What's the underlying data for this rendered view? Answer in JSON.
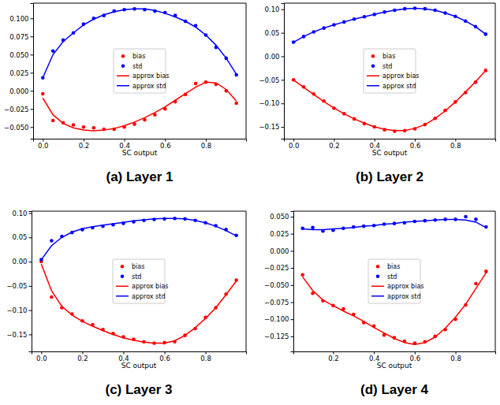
{
  "chart_data": [
    {
      "type": "scatter",
      "title": "(a) Layer 1",
      "x_label": "SC output",
      "legend": "center",
      "grid": false,
      "x": [
        0,
        0.05,
        0.1,
        0.15,
        0.2,
        0.25,
        0.3,
        0.35,
        0.4,
        0.45,
        0.5,
        0.55,
        0.6,
        0.65,
        0.7,
        0.75,
        0.8,
        0.85,
        0.9,
        0.95
      ],
      "xlim": [
        -0.0475,
        0.9975
      ],
      "xticks": [
        {
          "value": 0,
          "label": "0.0"
        },
        {
          "value": 0.2,
          "label": "0.2"
        },
        {
          "value": 0.4,
          "label": "0.4"
        },
        {
          "value": 0.6,
          "label": "0.6"
        },
        {
          "value": 0.8,
          "label": "0.8"
        }
      ],
      "ylim": [
        -0.066,
        0.121
      ],
      "yticks": [
        {
          "value": -0.05,
          "label": "−0.050"
        },
        {
          "value": -0.025,
          "label": "−0.025"
        },
        {
          "value": 0,
          "label": "0.000"
        },
        {
          "value": 0.025,
          "label": "0.025"
        },
        {
          "value": 0.05,
          "label": "0.050"
        },
        {
          "value": 0.075,
          "label": "0.075"
        },
        {
          "value": 0.1,
          "label": "0.100"
        }
      ],
      "series": [
        {
          "name": "bias",
          "color": "red",
          "type": "scatter",
          "marker": "circle",
          "values": [
            -0.004,
            -0.041,
            -0.044,
            -0.047,
            -0.05,
            -0.051,
            -0.053,
            -0.053,
            -0.05,
            -0.046,
            -0.04,
            -0.033,
            -0.025,
            -0.015,
            -0.005,
            0.01,
            0.012,
            0.009,
            0.0,
            -0.017
          ]
        },
        {
          "name": "std",
          "color": "blue",
          "type": "scatter",
          "marker": "circle",
          "values": [
            0.018,
            0.055,
            0.07,
            0.08,
            0.092,
            0.1,
            0.104,
            0.11,
            0.112,
            0.113,
            0.112,
            0.11,
            0.108,
            0.104,
            0.096,
            0.09,
            0.077,
            0.06,
            0.045,
            0.022
          ]
        },
        {
          "name": "approx bias",
          "color": "red",
          "type": "line",
          "line_style": "solid",
          "values": [
            -0.01,
            -0.033,
            -0.045,
            -0.051,
            -0.054,
            -0.055,
            -0.054,
            -0.052,
            -0.048,
            -0.043,
            -0.037,
            -0.03,
            -0.022,
            -0.013,
            -0.004,
            0.005,
            0.012,
            0.011,
            0.002,
            -0.014
          ]
        },
        {
          "name": "approx std",
          "color": "blue",
          "type": "line",
          "line_style": "solid",
          "values": [
            0.018,
            0.05,
            0.068,
            0.08,
            0.091,
            0.099,
            0.105,
            0.109,
            0.112,
            0.113,
            0.113,
            0.111,
            0.107,
            0.102,
            0.096,
            0.088,
            0.077,
            0.063,
            0.045,
            0.023
          ]
        }
      ]
    },
    {
      "type": "scatter",
      "title": "(b) Layer 2",
      "x_label": "SC output",
      "legend": "center",
      "grid": false,
      "x": [
        0,
        0.05,
        0.1,
        0.15,
        0.2,
        0.25,
        0.3,
        0.35,
        0.4,
        0.45,
        0.5,
        0.55,
        0.6,
        0.65,
        0.7,
        0.75,
        0.8,
        0.85,
        0.9,
        0.95
      ],
      "xlim": [
        -0.0475,
        0.9975
      ],
      "xticks": [
        {
          "value": 0,
          "label": "0.0"
        },
        {
          "value": 0.2,
          "label": "0.2"
        },
        {
          "value": 0.4,
          "label": "0.4"
        },
        {
          "value": 0.6,
          "label": "0.6"
        },
        {
          "value": 0.8,
          "label": "0.8"
        }
      ],
      "ylim": [
        -0.175,
        0.113
      ],
      "yticks": [
        {
          "value": -0.15,
          "label": "−0.15"
        },
        {
          "value": -0.1,
          "label": "−0.10"
        },
        {
          "value": -0.05,
          "label": "−0.05"
        },
        {
          "value": 0,
          "label": "0.00"
        },
        {
          "value": 0.05,
          "label": "0.05"
        },
        {
          "value": 0.1,
          "label": "0.10"
        }
      ],
      "series": [
        {
          "name": "bias",
          "color": "red",
          "type": "scatter",
          "marker": "circle",
          "values": [
            -0.05,
            -0.065,
            -0.08,
            -0.095,
            -0.11,
            -0.122,
            -0.133,
            -0.143,
            -0.15,
            -0.156,
            -0.159,
            -0.158,
            -0.154,
            -0.145,
            -0.132,
            -0.115,
            -0.097,
            -0.077,
            -0.055,
            -0.03
          ]
        },
        {
          "name": "std",
          "color": "blue",
          "type": "scatter",
          "marker": "circle",
          "values": [
            0.03,
            0.042,
            0.052,
            0.06,
            0.067,
            0.073,
            0.079,
            0.084,
            0.089,
            0.094,
            0.098,
            0.101,
            0.102,
            0.101,
            0.098,
            0.092,
            0.085,
            0.075,
            0.063,
            0.047
          ]
        },
        {
          "name": "approx bias",
          "color": "red",
          "type": "line",
          "line_style": "solid",
          "values": [
            -0.05,
            -0.066,
            -0.081,
            -0.096,
            -0.11,
            -0.122,
            -0.133,
            -0.142,
            -0.15,
            -0.155,
            -0.158,
            -0.158,
            -0.153,
            -0.145,
            -0.132,
            -0.116,
            -0.097,
            -0.076,
            -0.054,
            -0.03
          ]
        },
        {
          "name": "approx std",
          "color": "blue",
          "type": "line",
          "line_style": "solid",
          "values": [
            0.03,
            0.042,
            0.052,
            0.06,
            0.067,
            0.073,
            0.079,
            0.084,
            0.089,
            0.094,
            0.098,
            0.101,
            0.102,
            0.101,
            0.098,
            0.092,
            0.085,
            0.075,
            0.063,
            0.047
          ]
        }
      ]
    },
    {
      "type": "scatter",
      "title": "(c) Layer 3",
      "x_label": "SC output",
      "legend": "center",
      "grid": false,
      "x": [
        0,
        0.05,
        0.1,
        0.15,
        0.2,
        0.25,
        0.3,
        0.35,
        0.4,
        0.45,
        0.5,
        0.55,
        0.6,
        0.65,
        0.7,
        0.75,
        0.8,
        0.85,
        0.9,
        0.95
      ],
      "xlim": [
        -0.0475,
        0.9975
      ],
      "xticks": [
        {
          "value": 0,
          "label": "0.0"
        },
        {
          "value": 0.2,
          "label": "0.2"
        },
        {
          "value": 0.4,
          "label": "0.4"
        },
        {
          "value": 0.6,
          "label": "0.6"
        },
        {
          "value": 0.8,
          "label": "0.8"
        }
      ],
      "ylim": [
        -0.185,
        0.104
      ],
      "yticks": [
        {
          "value": -0.15,
          "label": "−0.15"
        },
        {
          "value": -0.1,
          "label": "−0.10"
        },
        {
          "value": -0.05,
          "label": "−0.05"
        },
        {
          "value": 0,
          "label": "0.00"
        },
        {
          "value": 0.05,
          "label": "0.05"
        },
        {
          "value": 0.1,
          "label": "0.10"
        }
      ],
      "series": [
        {
          "name": "bias",
          "color": "red",
          "type": "scatter",
          "marker": "circle",
          "values": [
            0.0,
            -0.073,
            -0.095,
            -0.108,
            -0.122,
            -0.13,
            -0.14,
            -0.148,
            -0.155,
            -0.16,
            -0.165,
            -0.168,
            -0.167,
            -0.165,
            -0.152,
            -0.138,
            -0.115,
            -0.095,
            -0.067,
            -0.038
          ]
        },
        {
          "name": "std",
          "color": "blue",
          "type": "scatter",
          "marker": "circle",
          "values": [
            0.004,
            0.043,
            0.052,
            0.06,
            0.066,
            0.07,
            0.073,
            0.076,
            0.079,
            0.082,
            0.085,
            0.087,
            0.088,
            0.089,
            0.088,
            0.085,
            0.08,
            0.074,
            0.066,
            0.054
          ]
        },
        {
          "name": "approx bias",
          "color": "red",
          "type": "line",
          "line_style": "solid",
          "values": [
            -0.005,
            -0.06,
            -0.092,
            -0.11,
            -0.123,
            -0.133,
            -0.142,
            -0.15,
            -0.157,
            -0.162,
            -0.166,
            -0.168,
            -0.168,
            -0.163,
            -0.152,
            -0.136,
            -0.117,
            -0.095,
            -0.068,
            -0.04
          ]
        },
        {
          "name": "approx std",
          "color": "blue",
          "type": "line",
          "line_style": "solid",
          "values": [
            0.004,
            0.033,
            0.05,
            0.061,
            0.068,
            0.072,
            0.075,
            0.078,
            0.081,
            0.084,
            0.086,
            0.088,
            0.089,
            0.089,
            0.088,
            0.085,
            0.08,
            0.073,
            0.064,
            0.053
          ]
        }
      ]
    },
    {
      "type": "scatter",
      "title": "(d) Layer 4",
      "x_label": "SC output",
      "legend": "center",
      "grid": false,
      "x": [
        0.05,
        0.1,
        0.15,
        0.2,
        0.25,
        0.3,
        0.35,
        0.4,
        0.45,
        0.5,
        0.55,
        0.6,
        0.65,
        0.7,
        0.75,
        0.8,
        0.85,
        0.9,
        0.95
      ],
      "xlim": [
        0.005,
        0.995
      ],
      "xticks": [
        {
          "value": 0.2,
          "label": "0.2"
        },
        {
          "value": 0.4,
          "label": "0.4"
        },
        {
          "value": 0.6,
          "label": "0.6"
        },
        {
          "value": 0.8,
          "label": "0.8"
        }
      ],
      "ylim": [
        -0.147,
        0.058
      ],
      "yticks": [
        {
          "value": -0.125,
          "label": "−0.125"
        },
        {
          "value": -0.1,
          "label": "−0.100"
        },
        {
          "value": -0.075,
          "label": "−0.075"
        },
        {
          "value": -0.05,
          "label": "−0.050"
        },
        {
          "value": -0.025,
          "label": "−0.025"
        },
        {
          "value": 0,
          "label": "0.000"
        },
        {
          "value": 0.025,
          "label": "0.025"
        },
        {
          "value": 0.05,
          "label": "0.050"
        }
      ],
      "series": [
        {
          "name": "bias",
          "color": "red",
          "type": "scatter",
          "marker": "circle",
          "values": [
            -0.035,
            -0.062,
            -0.073,
            -0.08,
            -0.085,
            -0.093,
            -0.105,
            -0.11,
            -0.123,
            -0.127,
            -0.132,
            -0.135,
            -0.133,
            -0.125,
            -0.115,
            -0.1,
            -0.079,
            -0.048,
            -0.03
          ]
        },
        {
          "name": "std",
          "color": "blue",
          "type": "scatter",
          "marker": "circle",
          "values": [
            0.033,
            0.034,
            0.029,
            0.03,
            0.033,
            0.035,
            0.036,
            0.037,
            0.039,
            0.04,
            0.041,
            0.043,
            0.044,
            0.045,
            0.046,
            0.046,
            0.05,
            0.046,
            0.035
          ]
        },
        {
          "name": "approx bias",
          "color": "red",
          "type": "line",
          "line_style": "solid",
          "values": [
            -0.038,
            -0.058,
            -0.072,
            -0.08,
            -0.088,
            -0.095,
            -0.103,
            -0.112,
            -0.12,
            -0.128,
            -0.134,
            -0.137,
            -0.134,
            -0.126,
            -0.113,
            -0.097,
            -0.078,
            -0.055,
            -0.032
          ]
        },
        {
          "name": "approx std",
          "color": "blue",
          "type": "line",
          "line_style": "solid",
          "values": [
            0.032,
            0.031,
            0.031,
            0.032,
            0.033,
            0.034,
            0.036,
            0.037,
            0.039,
            0.04,
            0.042,
            0.043,
            0.044,
            0.045,
            0.046,
            0.046,
            0.045,
            0.042,
            0.034
          ]
        }
      ]
    }
  ]
}
